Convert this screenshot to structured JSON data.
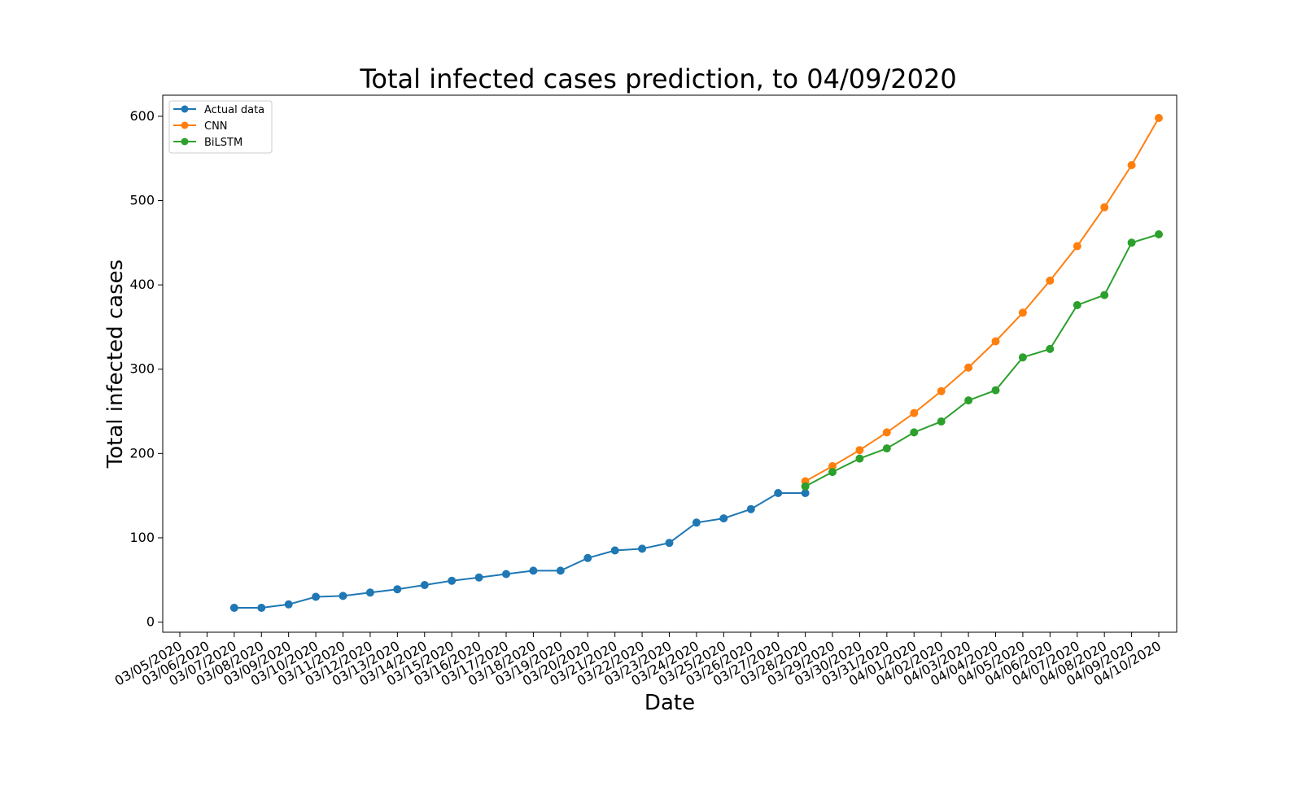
{
  "chart_data": {
    "type": "line",
    "title": "Total infected cases prediction, to 04/09/2020",
    "xlabel": "Date",
    "ylabel": "Total infected cases",
    "x_ticks": [
      "03/05/2020",
      "03/06/2020",
      "03/07/2020",
      "03/08/2020",
      "03/09/2020",
      "03/10/2020",
      "03/11/2020",
      "03/12/2020",
      "03/13/2020",
      "03/14/2020",
      "03/15/2020",
      "03/16/2020",
      "03/17/2020",
      "03/18/2020",
      "03/19/2020",
      "03/20/2020",
      "03/21/2020",
      "03/22/2020",
      "03/23/2020",
      "03/24/2020",
      "03/25/2020",
      "03/26/2020",
      "03/27/2020",
      "03/28/2020",
      "03/29/2020",
      "03/30/2020",
      "03/31/2020",
      "04/01/2020",
      "04/02/2020",
      "04/03/2020",
      "04/04/2020",
      "04/05/2020",
      "04/06/2020",
      "04/07/2020",
      "04/08/2020",
      "04/09/2020",
      "04/10/2020"
    ],
    "xlim": [
      "03/05/2020",
      "04/10/2020"
    ],
    "ylim": [
      -12,
      625
    ],
    "y_ticks": [
      0,
      100,
      200,
      300,
      400,
      500,
      600
    ],
    "grid": false,
    "legend_position": "top-left",
    "series": [
      {
        "name": "Actual data",
        "color": "#1f77b4",
        "x": [
          "03/07/2020",
          "03/08/2020",
          "03/09/2020",
          "03/10/2020",
          "03/11/2020",
          "03/12/2020",
          "03/13/2020",
          "03/14/2020",
          "03/15/2020",
          "03/16/2020",
          "03/17/2020",
          "03/18/2020",
          "03/19/2020",
          "03/20/2020",
          "03/21/2020",
          "03/22/2020",
          "03/23/2020",
          "03/24/2020",
          "03/25/2020",
          "03/26/2020",
          "03/27/2020",
          "03/28/2020"
        ],
        "values": [
          17,
          17,
          21,
          30,
          31,
          35,
          39,
          44,
          49,
          53,
          57,
          61,
          61,
          76,
          85,
          87,
          94,
          118,
          123,
          134,
          153,
          153
        ]
      },
      {
        "name": "CNN",
        "color": "#ff7f0e",
        "x": [
          "03/28/2020",
          "03/29/2020",
          "03/30/2020",
          "03/31/2020",
          "04/01/2020",
          "04/02/2020",
          "04/03/2020",
          "04/04/2020",
          "04/05/2020",
          "04/06/2020",
          "04/07/2020",
          "04/08/2020",
          "04/09/2020",
          "04/10/2020"
        ],
        "values": [
          167,
          185,
          204,
          225,
          248,
          274,
          302,
          333,
          367,
          405,
          446,
          492,
          542,
          598
        ]
      },
      {
        "name": "BiLSTM",
        "color": "#2ca02c",
        "x": [
          "03/28/2020",
          "03/29/2020",
          "03/30/2020",
          "03/31/2020",
          "04/01/2020",
          "04/02/2020",
          "04/03/2020",
          "04/04/2020",
          "04/05/2020",
          "04/06/2020",
          "04/07/2020",
          "04/08/2020",
          "04/09/2020",
          "04/10/2020"
        ],
        "values": [
          161,
          178,
          194,
          206,
          225,
          238,
          263,
          275,
          314,
          324,
          376,
          388,
          450,
          460
        ]
      }
    ]
  }
}
